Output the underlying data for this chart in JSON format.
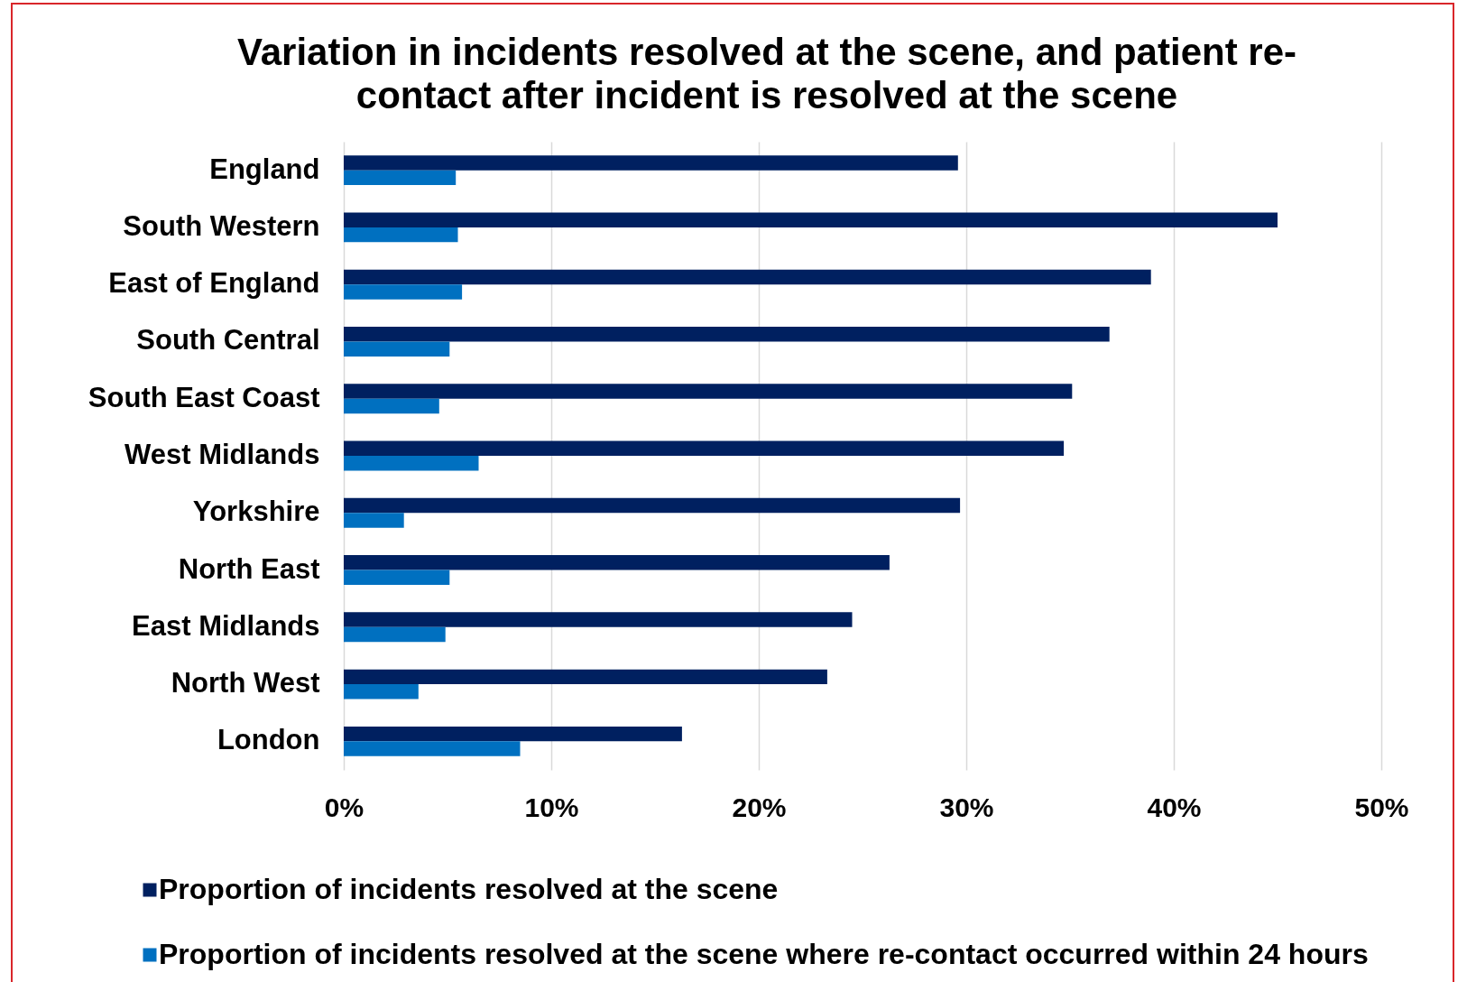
{
  "chart_data": {
    "type": "bar",
    "orientation": "horizontal",
    "title": "Variation in incidents resolved at the scene, and patient re-contact after incident is resolved at the scene",
    "categories": [
      "England",
      "South Western",
      "East of England",
      "South Central",
      "South East Coast",
      "West Midlands",
      "Yorkshire",
      "North East",
      "East Midlands",
      "North West",
      "London"
    ],
    "series": [
      {
        "name": "Proportion of incidents resolved at the scene",
        "color": "#002060",
        "values": [
          29.6,
          45.0,
          38.9,
          36.9,
          35.1,
          34.7,
          29.7,
          26.3,
          24.5,
          23.3,
          16.3
        ]
      },
      {
        "name": "Proportion of incidents resolved at the scene where re-contact occurred within 24 hours",
        "color": "#0070c0",
        "values": [
          5.4,
          5.5,
          5.7,
          5.1,
          4.6,
          6.5,
          2.9,
          5.1,
          4.9,
          3.6,
          8.5
        ]
      }
    ],
    "xlim": [
      0,
      50
    ],
    "xticks": [
      {
        "value": 0,
        "label": "0%"
      },
      {
        "value": 10,
        "label": "10%"
      },
      {
        "value": 20,
        "label": "20%"
      },
      {
        "value": 30,
        "label": "30%"
      },
      {
        "value": 40,
        "label": "40%"
      },
      {
        "value": 50,
        "label": "50%"
      }
    ],
    "grid": "x",
    "legend": "bottom"
  }
}
